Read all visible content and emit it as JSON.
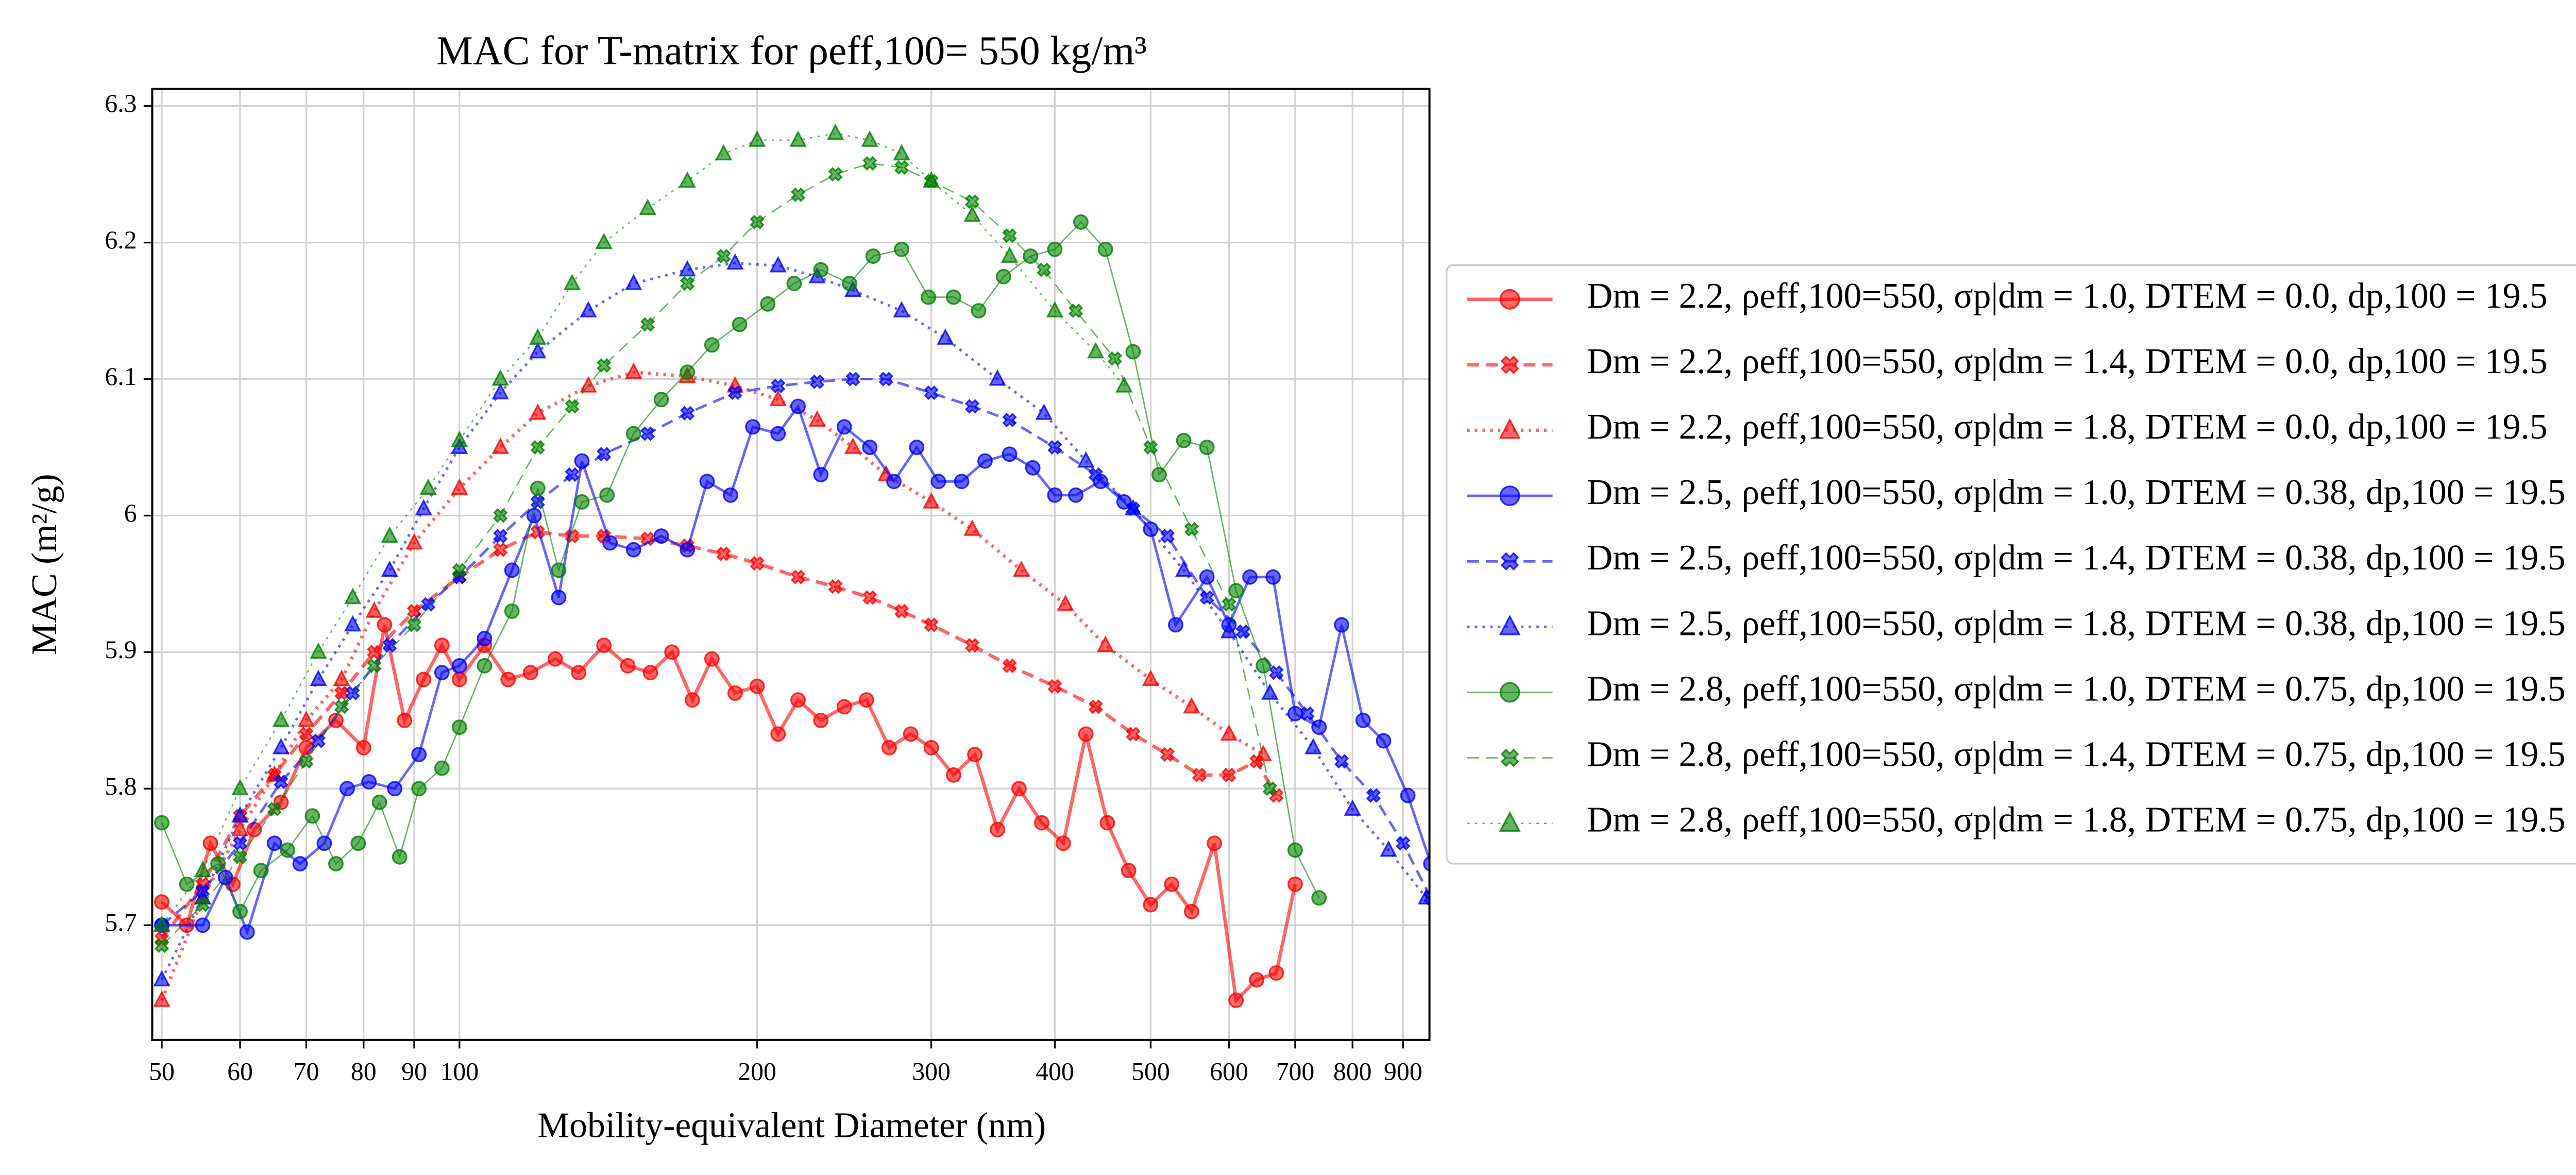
{
  "chart_data": {
    "type": "line",
    "title": "MAC for T-matrix for ρeff,100= 550 kg/m³",
    "xlabel": "Mobility-equivalent Diameter (nm)",
    "ylabel": "MAC (m²/g)",
    "xscale": "log",
    "xlim": [
      48.9,
      957
    ],
    "ylim": [
      5.616,
      6.3125
    ],
    "xticks": [
      50,
      60,
      70,
      80,
      90,
      100,
      200,
      300,
      400,
      500,
      600,
      700,
      800,
      900
    ],
    "yticks": [
      5.7,
      5.8,
      5.9,
      6.0,
      6.1,
      6.2,
      6.3
    ],
    "grid": true,
    "legend": "outside right",
    "series": [
      {
        "name": "Dm = 2.2, ρeff,100=550, σp|dm = 1.0, DTEM = 0.0, dp,100 = 19.5",
        "color": "#ff0000",
        "linestyle": "solid",
        "marker": "circle",
        "linewidth": 2,
        "x": [
          50,
          53,
          56,
          59,
          62,
          66,
          70,
          75,
          80,
          84,
          88,
          92,
          96,
          100,
          106,
          112,
          118,
          125,
          132,
          140,
          148,
          156,
          164,
          172,
          180,
          190,
          200,
          210,
          220,
          232,
          245,
          258,
          272,
          286,
          300,
          316,
          332,
          350,
          368,
          388,
          408,
          430,
          452,
          475,
          500,
          525,
          550,
          580,
          610,
          640,
          670,
          700
        ],
        "values": [
          5.717,
          5.7,
          5.76,
          5.73,
          5.77,
          5.79,
          5.83,
          5.85,
          5.83,
          5.92,
          5.85,
          5.88,
          5.905,
          5.88,
          5.905,
          5.88,
          5.885,
          5.895,
          5.885,
          5.905,
          5.89,
          5.885,
          5.9,
          5.865,
          5.895,
          5.87,
          5.875,
          5.84,
          5.865,
          5.85,
          5.86,
          5.865,
          5.83,
          5.84,
          5.83,
          5.81,
          5.825,
          5.77,
          5.8,
          5.775,
          5.76,
          5.84,
          5.775,
          5.74,
          5.715,
          5.73,
          5.71,
          5.76,
          5.645,
          5.66,
          5.665,
          5.73
        ]
      },
      {
        "name": "Dm = 2.2, ρeff,100=550, σp|dm = 1.4, DTEM = 0.0, dp,100 = 19.5",
        "color": "#ff0000",
        "linestyle": "dashed",
        "marker": "x",
        "linewidth": 2,
        "x": [
          50,
          55,
          60,
          65,
          70,
          76,
          82,
          90,
          100,
          110,
          120,
          130,
          140,
          155,
          170,
          185,
          200,
          220,
          240,
          260,
          280,
          300,
          330,
          360,
          400,
          440,
          480,
          520,
          560,
          600,
          640,
          670
        ],
        "values": [
          5.69,
          5.73,
          5.78,
          5.81,
          5.84,
          5.87,
          5.9,
          5.93,
          5.955,
          5.975,
          5.988,
          5.985,
          5.985,
          5.983,
          5.978,
          5.972,
          5.965,
          5.955,
          5.948,
          5.94,
          5.93,
          5.92,
          5.905,
          5.89,
          5.875,
          5.86,
          5.84,
          5.825,
          5.81,
          5.81,
          5.82,
          5.795
        ]
      },
      {
        "name": "Dm = 2.2, ρeff,100=550, σp|dm = 1.8, DTEM = 0.0, dp,100 = 19.5",
        "color": "#ff0000",
        "linestyle": "dotted",
        "marker": "triangle",
        "linewidth": 2,
        "x": [
          50,
          55,
          60,
          65,
          70,
          76,
          82,
          90,
          100,
          110,
          120,
          135,
          150,
          170,
          190,
          210,
          230,
          250,
          270,
          300,
          330,
          370,
          410,
          450,
          500,
          550,
          600,
          650
        ],
        "values": [
          5.645,
          5.72,
          5.77,
          5.81,
          5.85,
          5.88,
          5.93,
          5.98,
          6.02,
          6.05,
          6.075,
          6.095,
          6.105,
          6.102,
          6.095,
          6.085,
          6.07,
          6.05,
          6.03,
          6.01,
          5.99,
          5.96,
          5.935,
          5.905,
          5.88,
          5.86,
          5.84,
          5.825
        ]
      },
      {
        "name": "Dm = 2.5, ρeff,100=550, σp|dm = 1.0, DTEM = 0.38, dp,100 = 19.5",
        "color": "#0000ff",
        "linestyle": "solid",
        "marker": "circle",
        "linewidth": 1.5,
        "x": [
          50,
          55,
          58,
          61,
          65,
          69,
          73,
          77,
          81,
          86,
          91,
          96,
          100,
          106,
          113,
          119,
          126,
          133,
          142,
          150,
          160,
          170,
          178,
          188,
          198,
          210,
          220,
          232,
          245,
          260,
          275,
          290,
          305,
          322,
          340,
          360,
          380,
          400,
          420,
          445,
          470,
          500,
          530,
          570,
          600,
          630,
          665,
          700,
          740,
          780,
          820,
          860,
          910,
          960
        ],
        "values": [
          5.7,
          5.7,
          5.735,
          5.695,
          5.76,
          5.745,
          5.76,
          5.8,
          5.805,
          5.8,
          5.825,
          5.885,
          5.89,
          5.91,
          5.96,
          6.0,
          5.94,
          6.04,
          5.98,
          5.975,
          5.985,
          5.975,
          6.025,
          6.015,
          6.065,
          6.06,
          6.08,
          6.03,
          6.065,
          6.05,
          6.025,
          6.05,
          6.025,
          6.025,
          6.04,
          6.045,
          6.035,
          6.015,
          6.015,
          6.025,
          6.01,
          5.99,
          5.92,
          5.955,
          5.92,
          5.955,
          5.955,
          5.855,
          5.845,
          5.92,
          5.85,
          5.835,
          5.795,
          5.745
        ]
      },
      {
        "name": "Dm = 2.5, ρeff,100=550, σp|dm = 1.4, DTEM = 0.38, dp,100 = 19.5",
        "color": "#0000ff",
        "linestyle": "dashed",
        "marker": "x",
        "linewidth": 1.5,
        "x": [
          50,
          55,
          60,
          66,
          72,
          78,
          85,
          93,
          100,
          110,
          120,
          130,
          140,
          155,
          170,
          190,
          210,
          230,
          250,
          270,
          300,
          330,
          360,
          400,
          440,
          480,
          520,
          570,
          620,
          670,
          720,
          780,
          840,
          900,
          960
        ],
        "values": [
          5.7,
          5.725,
          5.76,
          5.805,
          5.835,
          5.87,
          5.905,
          5.935,
          5.955,
          5.985,
          6.01,
          6.03,
          6.045,
          6.06,
          6.075,
          6.09,
          6.095,
          6.098,
          6.1,
          6.1,
          6.09,
          6.08,
          6.07,
          6.05,
          6.03,
          6.005,
          5.985,
          5.94,
          5.915,
          5.885,
          5.855,
          5.82,
          5.795,
          5.76,
          5.72
        ]
      },
      {
        "name": "Dm = 2.5, ρeff,100=550, σp|dm = 1.8, DTEM = 0.38, dp,100 = 19.5",
        "color": "#0000ff",
        "linestyle": "dotted",
        "marker": "triangle",
        "linewidth": 1.5,
        "x": [
          50,
          55,
          60,
          66,
          72,
          78,
          85,
          92,
          100,
          110,
          120,
          135,
          150,
          170,
          190,
          210,
          230,
          250,
          280,
          310,
          350,
          390,
          430,
          480,
          540,
          600,
          660,
          730,
          800,
          870,
          950
        ],
        "values": [
          5.66,
          5.72,
          5.78,
          5.83,
          5.88,
          5.92,
          5.96,
          6.005,
          6.05,
          6.09,
          6.12,
          6.15,
          6.17,
          6.18,
          6.185,
          6.183,
          6.175,
          6.165,
          6.15,
          6.13,
          6.1,
          6.075,
          6.04,
          6.005,
          5.96,
          5.915,
          5.87,
          5.83,
          5.785,
          5.755,
          5.72
        ]
      },
      {
        "name": "Dm = 2.8, ρeff,100=550, σp|dm = 1.0, DTEM = 0.75, dp,100 = 19.5",
        "color": "#008000",
        "linestyle": "solid",
        "marker": "circle",
        "linewidth": 0.8,
        "x": [
          50,
          53,
          57,
          60,
          63,
          67,
          71,
          75,
          79,
          83,
          87,
          91,
          96,
          100,
          106,
          113,
          120,
          126,
          133,
          141,
          150,
          160,
          170,
          180,
          192,
          205,
          218,
          232,
          248,
          262,
          280,
          298,
          316,
          335,
          355,
          378,
          400,
          425,
          450,
          480,
          510,
          540,
          570,
          610,
          650,
          700,
          740
        ],
        "values": [
          5.775,
          5.73,
          5.745,
          5.71,
          5.74,
          5.755,
          5.78,
          5.745,
          5.76,
          5.79,
          5.75,
          5.8,
          5.815,
          5.845,
          5.89,
          5.93,
          6.02,
          5.96,
          6.01,
          6.015,
          6.06,
          6.085,
          6.105,
          6.125,
          6.14,
          6.155,
          6.17,
          6.18,
          6.17,
          6.19,
          6.195,
          6.16,
          6.16,
          6.15,
          6.175,
          6.19,
          6.195,
          6.215,
          6.195,
          6.12,
          6.03,
          6.055,
          6.05,
          5.945,
          5.89,
          5.755,
          5.72
        ]
      },
      {
        "name": "Dm = 2.8, ρeff,100=550, σp|dm = 1.4, DTEM = 0.75, dp,100 = 19.5",
        "color": "#008000",
        "linestyle": "dashed",
        "marker": "x",
        "linewidth": 0.8,
        "x": [
          50,
          55,
          60,
          65,
          70,
          76,
          82,
          90,
          100,
          110,
          120,
          130,
          140,
          155,
          170,
          185,
          200,
          220,
          240,
          260,
          280,
          300,
          330,
          360,
          390,
          420,
          460,
          500,
          550,
          600,
          660
        ],
        "values": [
          5.685,
          5.715,
          5.75,
          5.785,
          5.82,
          5.86,
          5.89,
          5.92,
          5.96,
          6.0,
          6.05,
          6.08,
          6.11,
          6.14,
          6.17,
          6.19,
          6.215,
          6.235,
          6.25,
          6.258,
          6.255,
          6.245,
          6.23,
          6.205,
          6.18,
          6.15,
          6.115,
          6.05,
          5.99,
          5.935,
          5.8
        ]
      },
      {
        "name": "Dm = 2.8, ρeff,100=550, σp|dm = 1.8, DTEM = 0.75, dp,100 = 19.5",
        "color": "#008000",
        "linestyle": "dotted",
        "marker": "triangle",
        "linewidth": 0.8,
        "x": [
          50,
          55,
          60,
          66,
          72,
          78,
          85,
          93,
          100,
          110,
          120,
          130,
          140,
          155,
          170,
          185,
          200,
          220,
          240,
          260,
          280,
          300,
          330,
          360,
          400,
          440,
          470
        ],
        "values": [
          5.7,
          5.74,
          5.8,
          5.85,
          5.9,
          5.94,
          5.985,
          6.02,
          6.055,
          6.1,
          6.13,
          6.17,
          6.2,
          6.225,
          6.245,
          6.265,
          6.275,
          6.275,
          6.28,
          6.275,
          6.265,
          6.245,
          6.22,
          6.19,
          6.15,
          6.12,
          6.095
        ]
      }
    ]
  }
}
